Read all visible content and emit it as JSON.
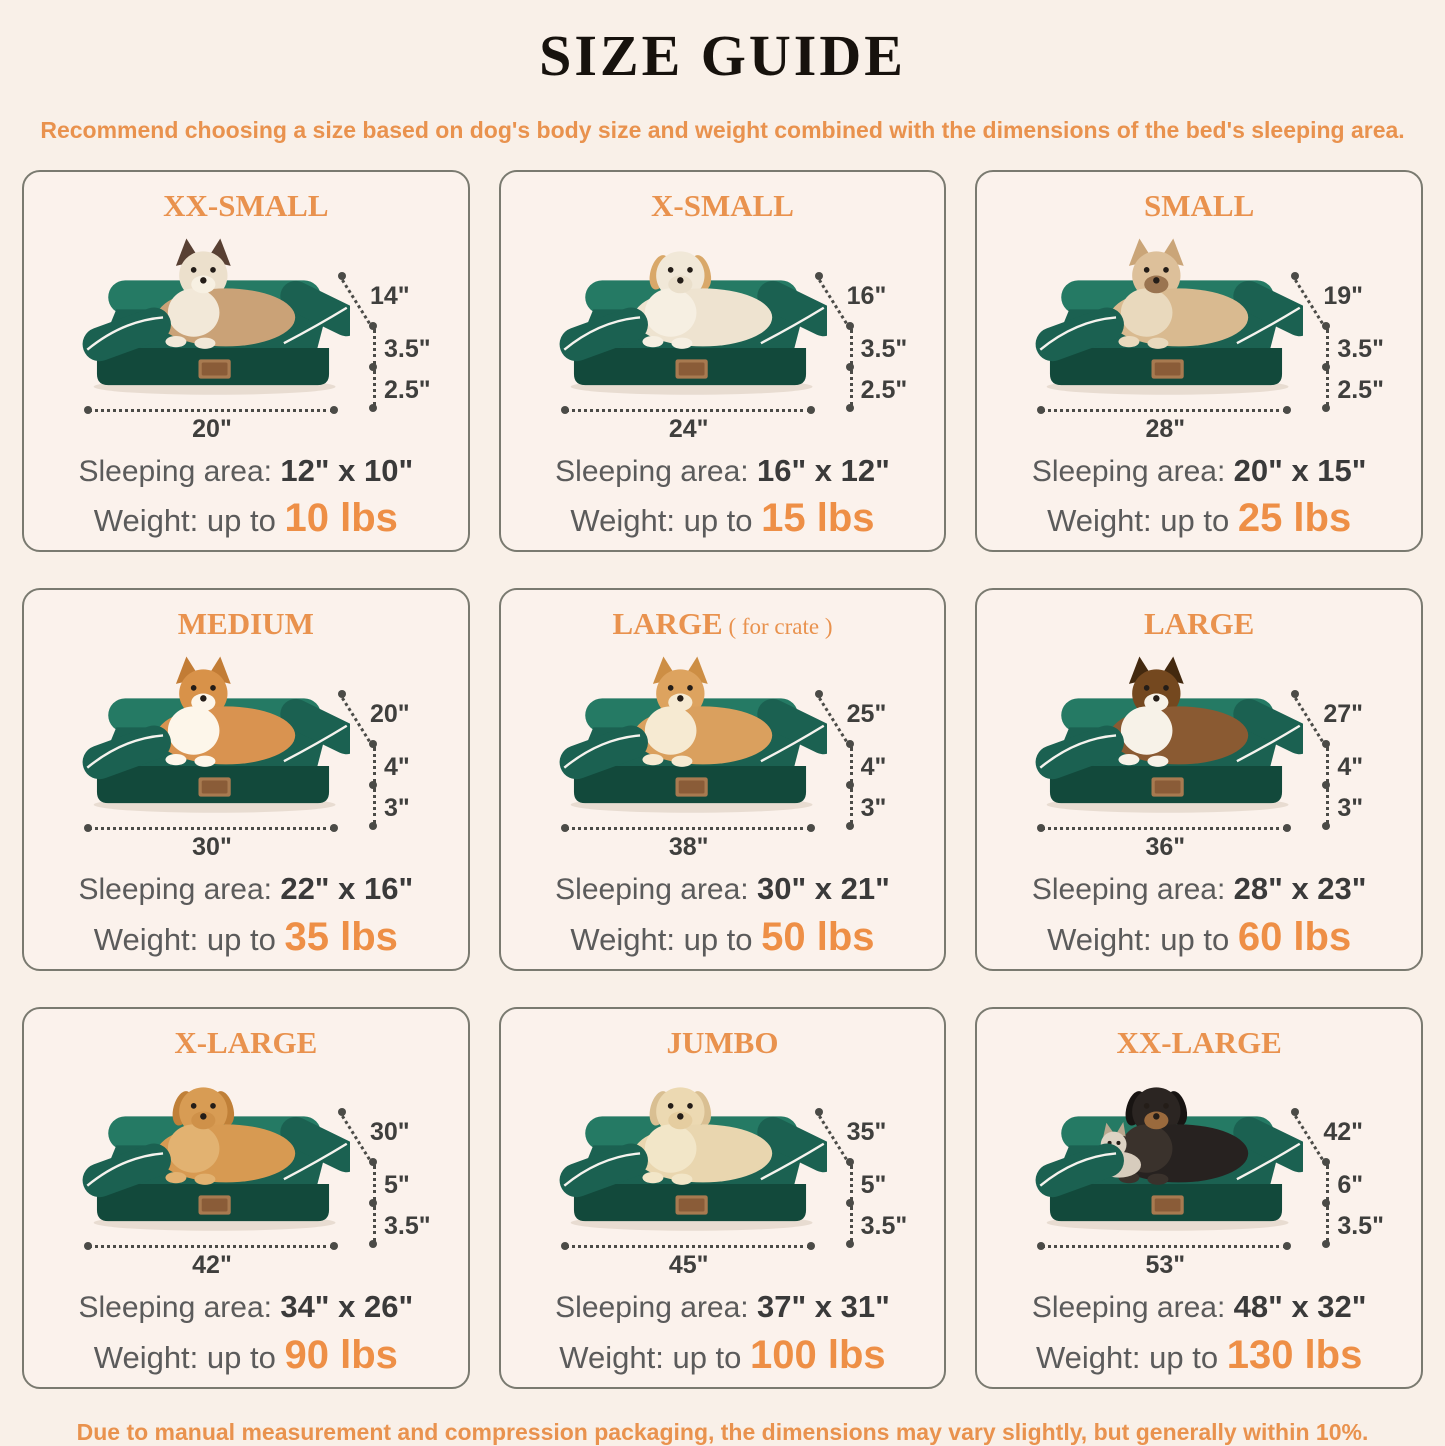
{
  "page": {
    "title": "SIZE GUIDE",
    "subtitle": "Recommend choosing a size based on dog's body size and weight combined with the dimensions of the bed's sleeping area.",
    "footer": "Due to manual measurement and compression packaging, the dimensions may vary slightly, but generally within 10%."
  },
  "colors": {
    "page_bg": "#f9f0e8",
    "card_bg": "#fbf2ec",
    "card_border": "#7a7a70",
    "accent_orange": "#e9924e",
    "weight_orange": "#ee8f46",
    "text_dark": "#3a3a3a",
    "text_gray": "#5b5b5b",
    "dim_line": "#4b4b47",
    "bed_green": "#1b6151",
    "bed_green_dark": "#12493b",
    "bed_green_light": "#257a64",
    "piping_white": "#f5f3ee",
    "label_tan": "#a87a50",
    "label_tan_dark": "#8a5c38"
  },
  "cards": [
    {
      "title": "XX-SMALL",
      "title_suffix": "",
      "dim_diagonal": "14\"",
      "dim_upper": "3.5\"",
      "dim_lower": "2.5\"",
      "dim_width": "20\"",
      "sleeping_label": "Sleeping area:",
      "sleeping_value": "12\" x 10\"",
      "weight_label": "Weight:",
      "weight_prefix": "up to",
      "weight_value": "10 lbs",
      "pet": {
        "name": "ragdoll-cat",
        "ears": "up",
        "body": "#caa277",
        "chest": "#f2e8d8",
        "head": "#ece0cc",
        "ear": "#584033",
        "muzzle": "#f7f0e2",
        "companion": false
      }
    },
    {
      "title": "X-SMALL",
      "title_suffix": "",
      "dim_diagonal": "16\"",
      "dim_upper": "3.5\"",
      "dim_lower": "2.5\"",
      "dim_width": "24\"",
      "sleeping_label": "Sleeping area:",
      "sleeping_value": "16\" x 12\"",
      "weight_label": "Weight:",
      "weight_prefix": "up to",
      "weight_value": "15 lbs",
      "pet": {
        "name": "maltese-puppy",
        "ears": "down",
        "body": "#eee3d0",
        "chest": "#f6efe2",
        "head": "#f1e8d8",
        "ear": "#d9a869",
        "muzzle": "#eadfcb",
        "companion": false
      }
    },
    {
      "title": "SMALL",
      "title_suffix": "",
      "dim_diagonal": "19\"",
      "dim_upper": "3.5\"",
      "dim_lower": "2.5\"",
      "dim_width": "28\"",
      "sleeping_label": "Sleeping area:",
      "sleeping_value": "20\" x 15\"",
      "weight_label": "Weight:",
      "weight_prefix": "up to",
      "weight_value": "25 lbs",
      "pet": {
        "name": "french-bulldog",
        "ears": "up",
        "body": "#d9ba90",
        "chest": "#e9d9bd",
        "head": "#ddc09a",
        "ear": "#caa578",
        "muzzle": "#9a7450",
        "companion": false
      }
    },
    {
      "title": "MEDIUM",
      "title_suffix": "",
      "dim_diagonal": "20\"",
      "dim_upper": "4\"",
      "dim_lower": "3\"",
      "dim_width": "30\"",
      "sleeping_label": "Sleeping area:",
      "sleeping_value": "22\" x 16\"",
      "weight_label": "Weight:",
      "weight_prefix": "up to",
      "weight_value": "35 lbs",
      "pet": {
        "name": "corgi",
        "ears": "up",
        "body": "#d99350",
        "chest": "#fdf6ea",
        "head": "#d89249",
        "ear": "#c27c35",
        "muzzle": "#fdf6ea",
        "companion": false
      }
    },
    {
      "title": "LARGE",
      "title_suffix": "  ( for crate )",
      "dim_diagonal": "25\"",
      "dim_upper": "4\"",
      "dim_lower": "3\"",
      "dim_width": "38\"",
      "sleeping_label": "Sleeping area:",
      "sleeping_value": "30\" x 21\"",
      "weight_label": "Weight:",
      "weight_prefix": "up to",
      "weight_value": "50 lbs",
      "pet": {
        "name": "shiba-inu",
        "ears": "up",
        "body": "#daa05e",
        "chest": "#f6ead2",
        "head": "#dda35f",
        "ear": "#cd8e44",
        "muzzle": "#f6ead2",
        "companion": false
      }
    },
    {
      "title": "LARGE",
      "title_suffix": "",
      "dim_diagonal": "27\"",
      "dim_upper": "4\"",
      "dim_lower": "3\"",
      "dim_width": "36\"",
      "sleeping_label": "Sleeping area:",
      "sleeping_value": "28\" x 23\"",
      "weight_label": "Weight:",
      "weight_prefix": "up to",
      "weight_value": "60 lbs",
      "pet": {
        "name": "border-collie",
        "ears": "up",
        "body": "#8a5a32",
        "chest": "#f7f2e8",
        "head": "#74481f",
        "ear": "#43290f",
        "muzzle": "#f7f2e8",
        "companion": false
      }
    },
    {
      "title": "X-LARGE",
      "title_suffix": "",
      "dim_diagonal": "30\"",
      "dim_upper": "5\"",
      "dim_lower": "3.5\"",
      "dim_width": "42\"",
      "sleeping_label": "Sleeping area:",
      "sleeping_value": "34\" x 26\"",
      "weight_label": "Weight:",
      "weight_prefix": "up to",
      "weight_value": "90 lbs",
      "pet": {
        "name": "golden-retriever",
        "ears": "down",
        "body": "#d79a52",
        "chest": "#e2b271",
        "head": "#d89c54",
        "ear": "#c08038",
        "muzzle": "#cf9149",
        "companion": false
      }
    },
    {
      "title": "JUMBO",
      "title_suffix": "",
      "dim_diagonal": "35\"",
      "dim_upper": "5\"",
      "dim_lower": "3.5\"",
      "dim_width": "45\"",
      "sleeping_label": "Sleeping area:",
      "sleeping_value": "37\" x 31\"",
      "weight_label": "Weight:",
      "weight_prefix": "up to",
      "weight_value": "100 lbs",
      "pet": {
        "name": "labrador",
        "ears": "down",
        "body": "#e9d6af",
        "chest": "#f2e6c8",
        "head": "#ecd9b2",
        "ear": "#d9bf92",
        "muzzle": "#e5cda0",
        "companion": false
      }
    },
    {
      "title": "XX-LARGE",
      "title_suffix": "",
      "dim_diagonal": "42\"",
      "dim_upper": "6\"",
      "dim_lower": "3.5\"",
      "dim_width": "53\"",
      "sleeping_label": "Sleeping area:",
      "sleeping_value": "48\" x 32\"",
      "weight_label": "Weight:",
      "weight_prefix": "up to",
      "weight_value": "130 lbs",
      "pet": {
        "name": "rottweiler-with-chihuahua",
        "ears": "down",
        "body": "#272220",
        "chest": "#3a322c",
        "head": "#2b2522",
        "ear": "#181412",
        "muzzle": "#9a6a3d",
        "companion": true
      }
    }
  ]
}
